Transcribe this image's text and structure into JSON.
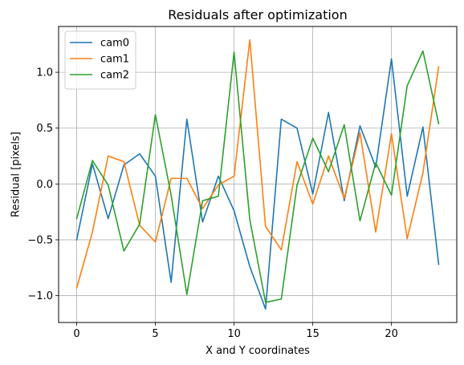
{
  "chart_data": {
    "type": "line",
    "title": "Residuals after optimization",
    "xlabel": "X and Y coordinates",
    "ylabel": "Residual [pixels]",
    "xlim": [
      -1.15,
      24.15
    ],
    "ylim": [
      -1.24,
      1.41
    ],
    "xticks": [
      0,
      5,
      10,
      15,
      20
    ],
    "yticks": [
      -1.0,
      -0.5,
      0.0,
      0.5,
      1.0
    ],
    "ytick_labels": [
      "−1.0",
      "−0.5",
      "0.0",
      "0.5",
      "1.0"
    ],
    "grid": true,
    "legend_position": "top-left",
    "x": [
      0,
      1,
      2,
      3,
      4,
      5,
      6,
      7,
      8,
      9,
      10,
      11,
      12,
      13,
      14,
      15,
      16,
      17,
      18,
      19,
      20,
      21,
      22,
      23
    ],
    "series": [
      {
        "name": "cam0",
        "color": "#1f77b4",
        "values": [
          -0.5,
          0.18,
          -0.31,
          0.17,
          0.27,
          0.07,
          -0.88,
          0.58,
          -0.34,
          0.07,
          -0.24,
          -0.74,
          -1.12,
          0.58,
          0.5,
          -0.09,
          0.64,
          -0.15,
          0.52,
          0.15,
          1.12,
          -0.11,
          0.51,
          -0.72
        ]
      },
      {
        "name": "cam1",
        "color": "#ff7f0e",
        "values": [
          -0.93,
          -0.43,
          0.25,
          0.2,
          -0.37,
          -0.52,
          0.05,
          0.05,
          -0.22,
          -0.01,
          0.07,
          1.29,
          -0.38,
          -0.59,
          0.2,
          -0.18,
          0.25,
          -0.13,
          0.46,
          -0.43,
          0.45,
          -0.49,
          0.1,
          1.05
        ]
      },
      {
        "name": "cam2",
        "color": "#2ca02c",
        "values": [
          -0.31,
          0.21,
          -0.01,
          -0.6,
          -0.36,
          0.62,
          -0.1,
          -0.99,
          -0.15,
          -0.11,
          1.18,
          -0.32,
          -1.06,
          -1.03,
          -0.01,
          0.41,
          0.11,
          0.53,
          -0.33,
          0.19,
          -0.1,
          0.88,
          1.19,
          0.54
        ]
      }
    ]
  }
}
